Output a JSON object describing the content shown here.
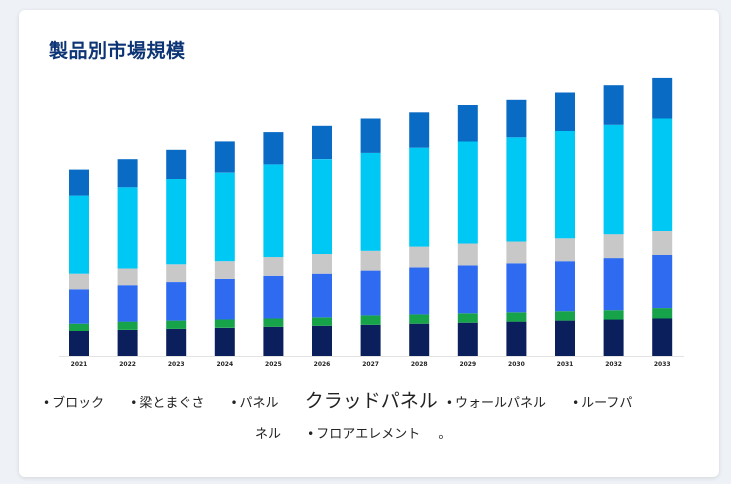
{
  "page": {
    "title": "製品別市場規模"
  },
  "legend": {
    "items": [
      {
        "label": "ブロック"
      },
      {
        "label": "梁とまぐさ"
      },
      {
        "label": "パネル"
      },
      {
        "label": "クラッドパネル"
      },
      {
        "label": "ウォールパネル"
      },
      {
        "label": "ルーフパ"
      },
      {
        "label": "ネル"
      },
      {
        "label": "フロアエレメント"
      }
    ],
    "bullet": "•",
    "end_mark": "。"
  },
  "colors": {
    "series": [
      "#0a1f5c",
      "#17a34a",
      "#2f6bf0",
      "#c8c8c8",
      "#00c8f5",
      "#0a6bc4"
    ]
  },
  "chart_data": {
    "type": "bar",
    "stacked": true,
    "title": "製品別市場規模",
    "categories": [
      "2021",
      "2022",
      "2023",
      "2024",
      "2025",
      "2026",
      "2027",
      "2028",
      "2029",
      "2030",
      "2031",
      "2032",
      "2033"
    ],
    "ylim": [
      0,
      265
    ],
    "series": [
      {
        "name": "ブロック",
        "values": [
          24,
          25,
          26,
          27,
          28,
          29,
          30,
          31,
          32,
          33,
          34,
          35,
          36
        ]
      },
      {
        "name": "梁とまぐさ",
        "values": [
          7,
          8,
          8,
          8,
          8,
          8,
          9,
          9,
          9,
          9,
          9,
          9,
          10
        ]
      },
      {
        "name": "パネル",
        "values": [
          33,
          35,
          37,
          39,
          41,
          42,
          43,
          45,
          46,
          47,
          48,
          50,
          51
        ]
      },
      {
        "name": "クラッドパネル",
        "values": [
          15,
          16,
          17,
          17,
          18,
          19,
          19,
          20,
          21,
          21,
          22,
          23,
          23
        ]
      },
      {
        "name": "ウォールパネル",
        "values": [
          75,
          78,
          82,
          85,
          89,
          91,
          94,
          95,
          98,
          100,
          103,
          105,
          108
        ]
      },
      {
        "name": "フロアエレメント",
        "values": [
          25,
          27,
          28,
          30,
          31,
          32,
          33,
          34,
          35,
          36,
          37,
          38,
          39
        ]
      }
    ]
  }
}
